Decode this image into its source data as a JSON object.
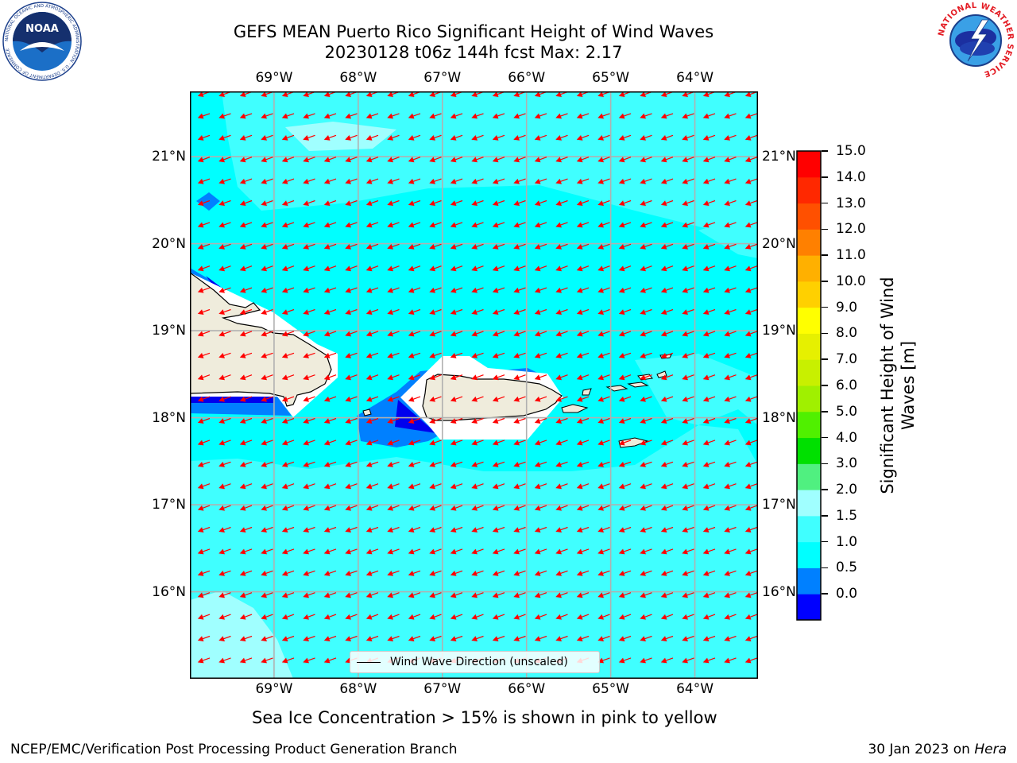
{
  "title": {
    "line1": "GEFS MEAN Puerto Rico Significant Height of Wind Waves",
    "line2": "20230128 t06z 144h fcst   Max: 2.17"
  },
  "map": {
    "lon_labels": [
      "69°W",
      "68°W",
      "67°W",
      "66°W",
      "65°W",
      "64°W"
    ],
    "lat_labels": [
      "21°N",
      "20°N",
      "19°N",
      "18°N",
      "17°N",
      "16°N"
    ],
    "lon_values": [
      -69,
      -68,
      -67,
      -66,
      -65,
      -64
    ],
    "lat_values": [
      21,
      20,
      19,
      18,
      17,
      16
    ],
    "extent": {
      "lon_min": -70,
      "lon_max": -63.25,
      "lat_min": 15,
      "lat_max": 21.75
    },
    "arrow_direction": "toward-west-southwest",
    "ocean_color": "#40FFFF",
    "land_color": "#EFECDC"
  },
  "legend": {
    "label": "Wind Wave Direction (unscaled)"
  },
  "colorbar": {
    "title_line1": "Significant Height of Wind",
    "title_line2": "Waves [m]",
    "ticks": [
      "15.0",
      "14.0",
      "13.0",
      "12.0",
      "11.0",
      "10.0",
      "9.0",
      "8.0",
      "7.0",
      "6.0",
      "5.0",
      "4.0",
      "3.0",
      "2.0",
      "1.5",
      "1.0",
      "0.5",
      "0.0"
    ],
    "colors": [
      "#0000FF",
      "#0080FF",
      "#00FFFF",
      "#40FFFF",
      "#A0FFFF",
      "#50F080",
      "#00E000",
      "#50F000",
      "#A0F000",
      "#C8F000",
      "#E6F000",
      "#FFFF00",
      "#FFD000",
      "#FFB000",
      "#FF8000",
      "#FF5000",
      "#FF2800",
      "#FF0000"
    ]
  },
  "note": "Sea Ice Concentration > 15% is shown in pink to yellow",
  "footer": {
    "left": "NCEP/EMC/Verification Post Processing Product Generation Branch",
    "right_prefix": "30 Jan 2023 on ",
    "right_italic": "Hera"
  },
  "logos": {
    "noaa_text": "NOAA",
    "noaa_ring": "NATIONAL OCEANIC AND ATMOSPHERIC ADMINISTRATION · U.S. DEPARTMENT OF COMMERCE",
    "nws_ring": "NATIONAL WEATHER SERVICE"
  }
}
